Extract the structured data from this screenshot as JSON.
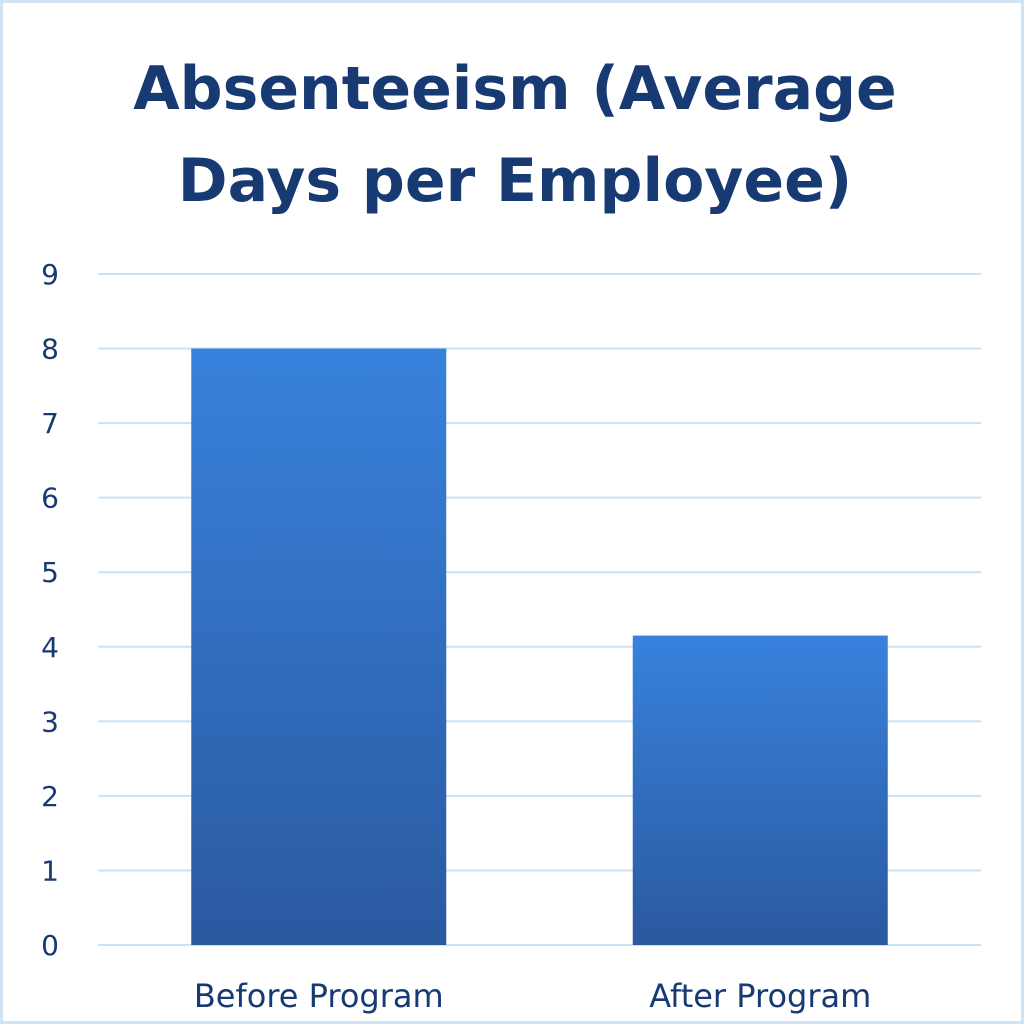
{
  "chart_data": {
    "type": "bar",
    "title": "Absenteeism (Average Days per Employee)",
    "categories": [
      "Before Program",
      "After Program"
    ],
    "values": [
      8,
      4.15
    ],
    "ylim": [
      0,
      9
    ],
    "yticks": [
      "0",
      "1",
      "2",
      "3",
      "4",
      "5",
      "6",
      "7",
      "8",
      "9"
    ],
    "grid": true,
    "colors": {
      "bar_top": "#3882dd",
      "bar_bottom": "#2a599f",
      "grid": "#c9e2f3",
      "text": "#173a73",
      "border": "#cfe3f5"
    }
  }
}
